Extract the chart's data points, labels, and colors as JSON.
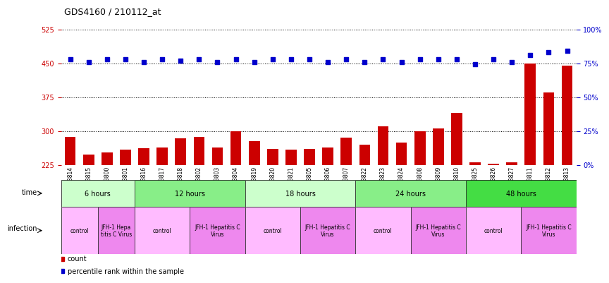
{
  "title": "GDS4160 / 210112_at",
  "samples": [
    "GSM523814",
    "GSM523815",
    "GSM523800",
    "GSM523801",
    "GSM523816",
    "GSM523817",
    "GSM523818",
    "GSM523802",
    "GSM523803",
    "GSM523804",
    "GSM523819",
    "GSM523820",
    "GSM523821",
    "GSM523805",
    "GSM523806",
    "GSM523807",
    "GSM523822",
    "GSM523823",
    "GSM523824",
    "GSM523808",
    "GSM523809",
    "GSM523810",
    "GSM523825",
    "GSM523826",
    "GSM523827",
    "GSM523811",
    "GSM523812",
    "GSM523813"
  ],
  "counts": [
    287,
    248,
    252,
    258,
    262,
    263,
    284,
    287,
    263,
    300,
    278,
    260,
    258,
    260,
    264,
    286,
    270,
    310,
    274,
    300,
    305,
    340,
    230,
    228,
    230,
    450,
    385,
    445
  ],
  "percentile": [
    78,
    76,
    78,
    78,
    76,
    78,
    77,
    78,
    76,
    78,
    76,
    78,
    78,
    78,
    76,
    78,
    76,
    78,
    76,
    78,
    78,
    78,
    74,
    78,
    76,
    81,
    83,
    84
  ],
  "ylim_left": [
    225,
    525
  ],
  "ylim_right": [
    0,
    100
  ],
  "yticks_left": [
    225,
    300,
    375,
    450,
    525
  ],
  "yticks_right": [
    0,
    25,
    50,
    75,
    100
  ],
  "bar_color": "#cc0000",
  "dot_color": "#0000cc",
  "bg_color": "#ffffff",
  "time_groups": [
    {
      "label": "6 hours",
      "start": 0,
      "end": 4,
      "color": "#ccffcc"
    },
    {
      "label": "12 hours",
      "start": 4,
      "end": 10,
      "color": "#88ee88"
    },
    {
      "label": "18 hours",
      "start": 10,
      "end": 16,
      "color": "#ccffcc"
    },
    {
      "label": "24 hours",
      "start": 16,
      "end": 22,
      "color": "#88ee88"
    },
    {
      "label": "48 hours",
      "start": 22,
      "end": 28,
      "color": "#44dd44"
    }
  ],
  "infection_groups": [
    {
      "label": "control",
      "start": 0,
      "end": 2,
      "color": "#ffbbff"
    },
    {
      "label": "JFH-1 Hepa\ntitis C Virus",
      "start": 2,
      "end": 4,
      "color": "#ee88ee"
    },
    {
      "label": "control",
      "start": 4,
      "end": 7,
      "color": "#ffbbff"
    },
    {
      "label": "JFH-1 Hepatitis C\nVirus",
      "start": 7,
      "end": 10,
      "color": "#ee88ee"
    },
    {
      "label": "control",
      "start": 10,
      "end": 13,
      "color": "#ffbbff"
    },
    {
      "label": "JFH-1 Hepatitis C\nVirus",
      "start": 13,
      "end": 16,
      "color": "#ee88ee"
    },
    {
      "label": "control",
      "start": 16,
      "end": 19,
      "color": "#ffbbff"
    },
    {
      "label": "JFH-1 Hepatitis C\nVirus",
      "start": 19,
      "end": 22,
      "color": "#ee88ee"
    },
    {
      "label": "control",
      "start": 22,
      "end": 25,
      "color": "#ffbbff"
    },
    {
      "label": "JFH-1 Hepatitis C\nVirus",
      "start": 25,
      "end": 28,
      "color": "#ee88ee"
    }
  ],
  "legend_count_color": "#cc0000",
  "legend_pct_color": "#0000cc",
  "legend_count_label": "count",
  "legend_pct_label": "percentile rank within the sample"
}
